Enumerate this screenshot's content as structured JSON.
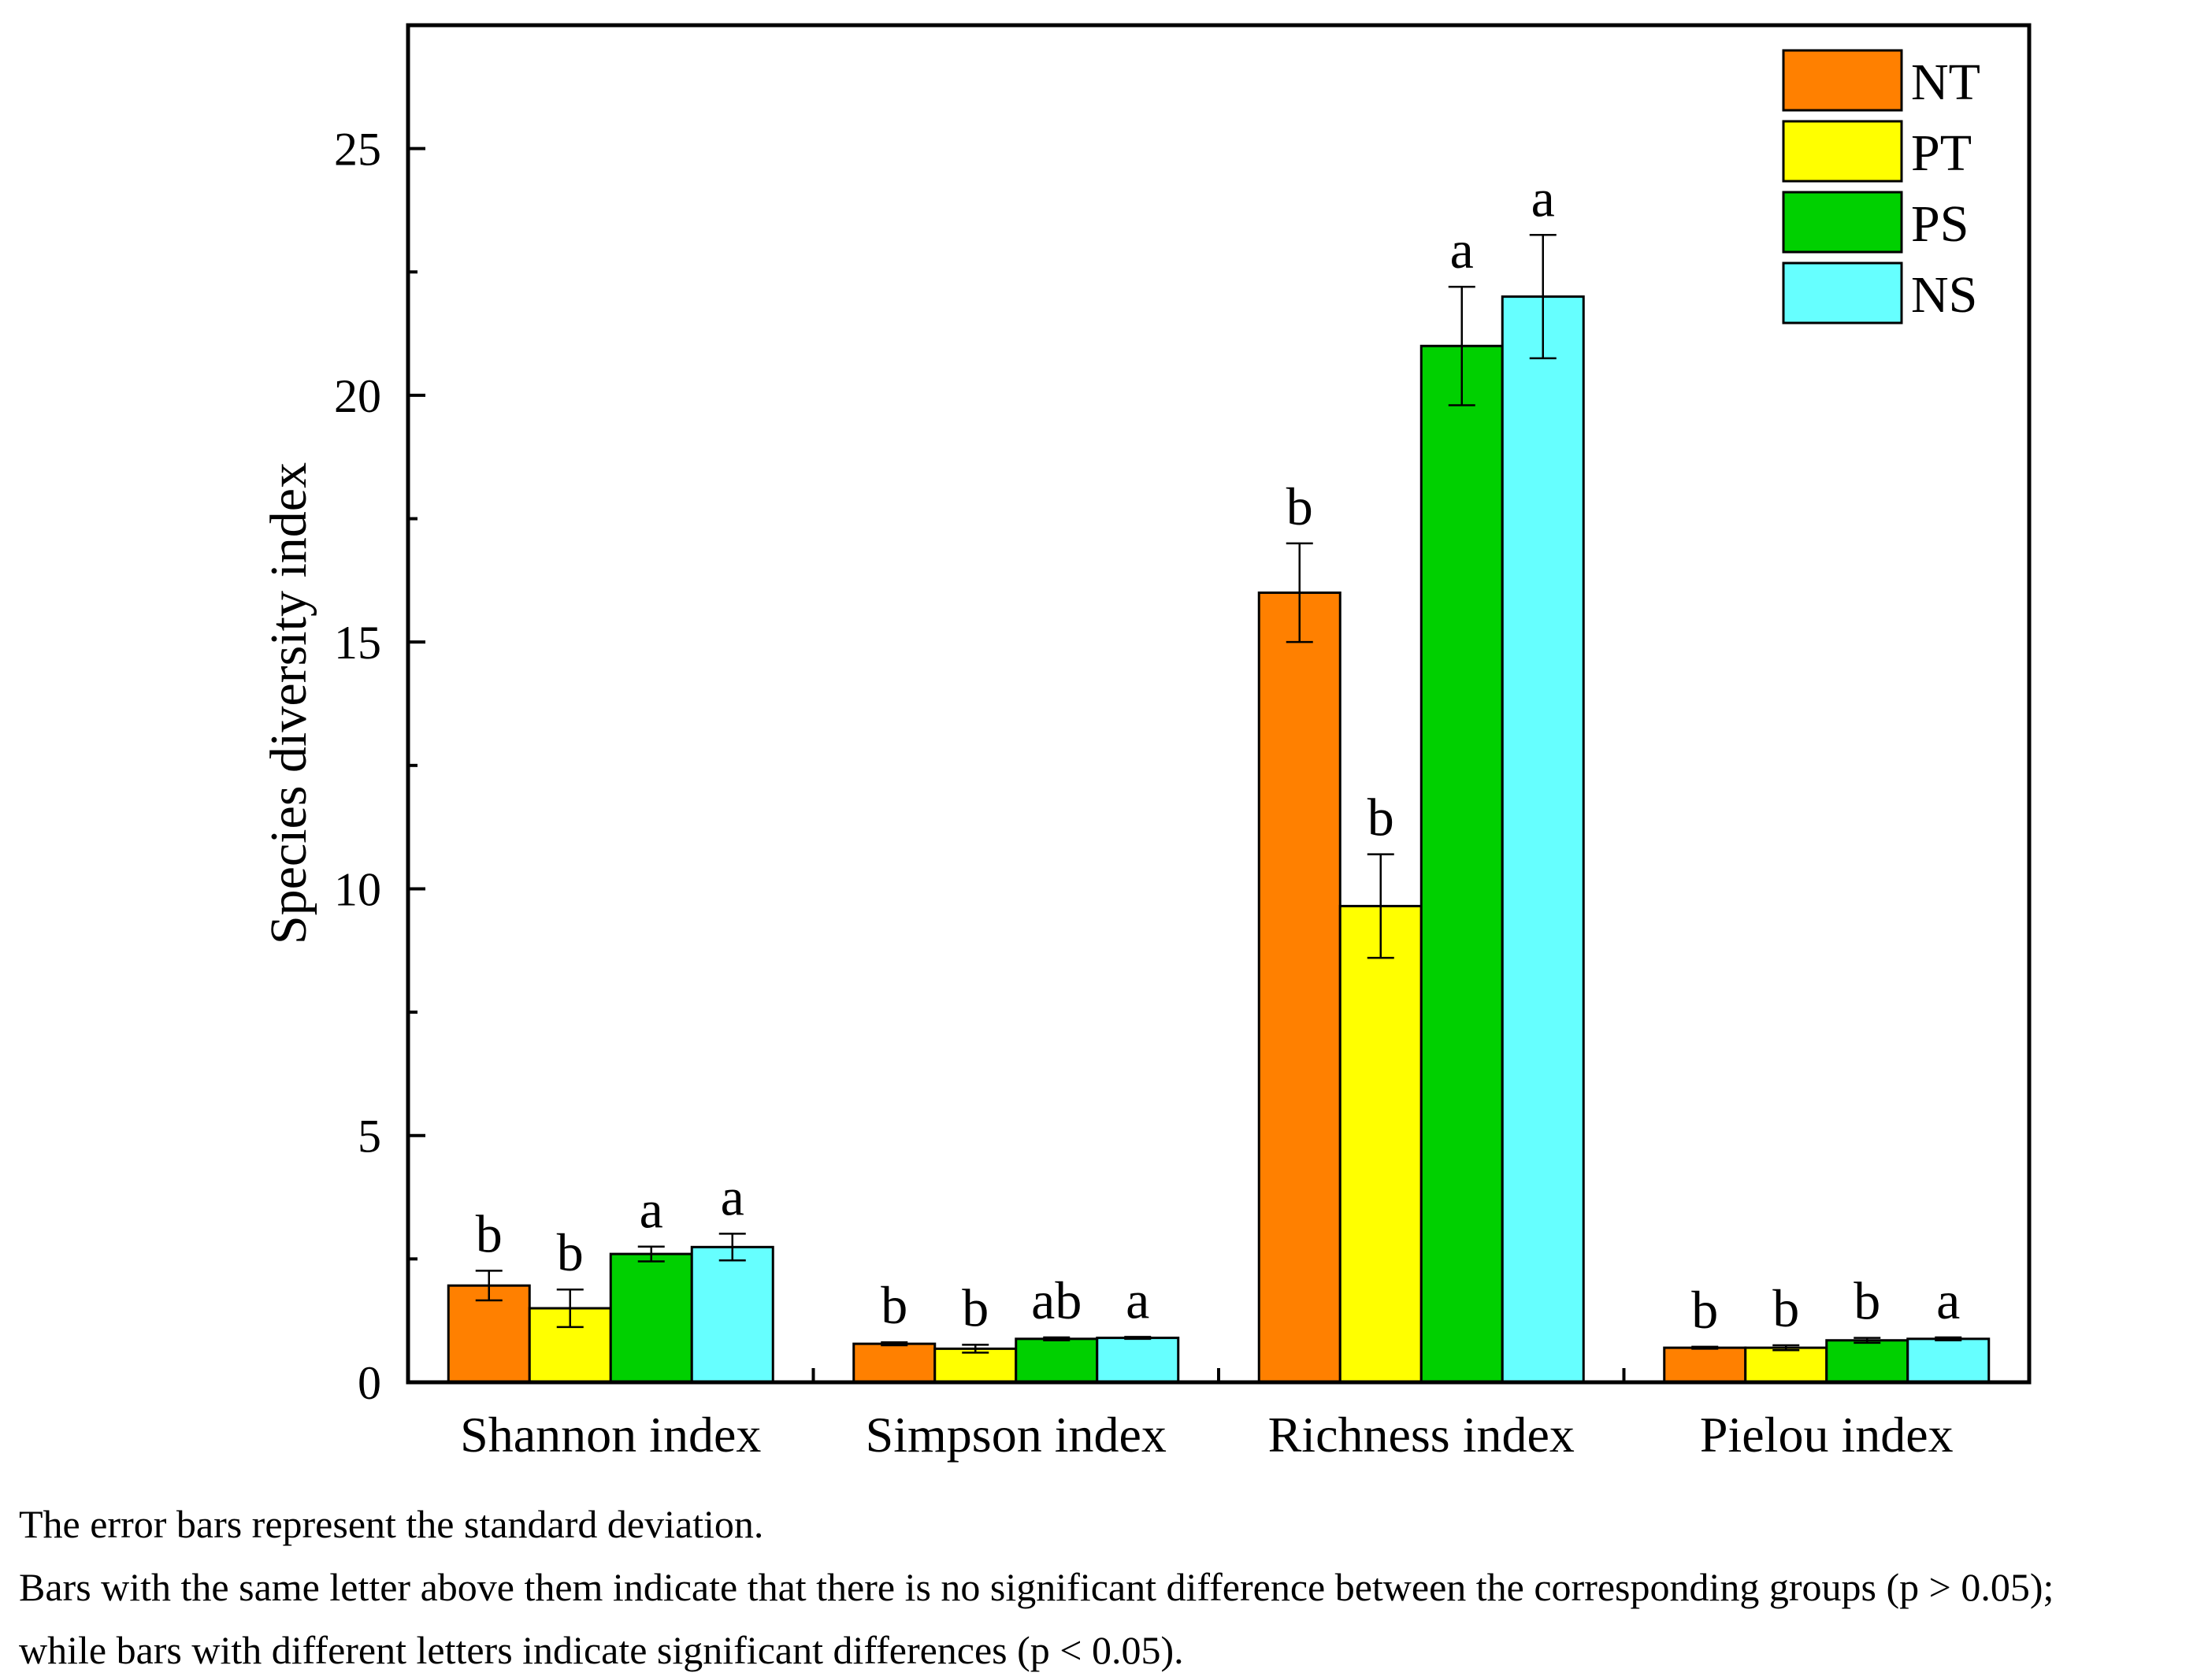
{
  "chart_data": {
    "type": "bar",
    "title": "",
    "xlabel": "",
    "ylabel": "Species diversity index",
    "ylim": [
      0,
      27.5
    ],
    "yticks": [
      0,
      5,
      10,
      15,
      20,
      25
    ],
    "grid": false,
    "legend_position": "top-right",
    "categories": [
      "Shannon index",
      "Simpson index",
      "Richness index",
      "Pielou index"
    ],
    "series": [
      {
        "name": "NT",
        "color": "#FF8000",
        "values": [
          1.96,
          0.78,
          16.0,
          0.7
        ],
        "errors": [
          0.3,
          0.03,
          1.0,
          0.02
        ],
        "letters": [
          "b",
          "b",
          "b",
          "b"
        ]
      },
      {
        "name": "PT",
        "color": "#FFFF00",
        "values": [
          1.5,
          0.68,
          9.65,
          0.7
        ],
        "errors": [
          0.38,
          0.08,
          1.05,
          0.05
        ],
        "letters": [
          "b",
          "b",
          "b",
          "b"
        ]
      },
      {
        "name": "PS",
        "color": "#00D000",
        "values": [
          2.6,
          0.88,
          21.0,
          0.85
        ],
        "errors": [
          0.15,
          0.03,
          1.2,
          0.05
        ],
        "letters": [
          "a",
          "ab",
          "a",
          "b"
        ]
      },
      {
        "name": "NS",
        "color": "#66FFFF",
        "values": [
          2.74,
          0.9,
          22.0,
          0.88
        ],
        "errors": [
          0.27,
          0.02,
          1.25,
          0.03
        ],
        "letters": [
          "a",
          "a",
          "a",
          "a"
        ]
      }
    ]
  },
  "notes": {
    "line1": "The error bars represent the standard deviation.",
    "line2": " Bars with the same letter above them indicate that there is no significant difference between the corresponding groups (p > 0.05);",
    "line3": "while bars with different letters indicate significant differences (p < 0.05)."
  }
}
